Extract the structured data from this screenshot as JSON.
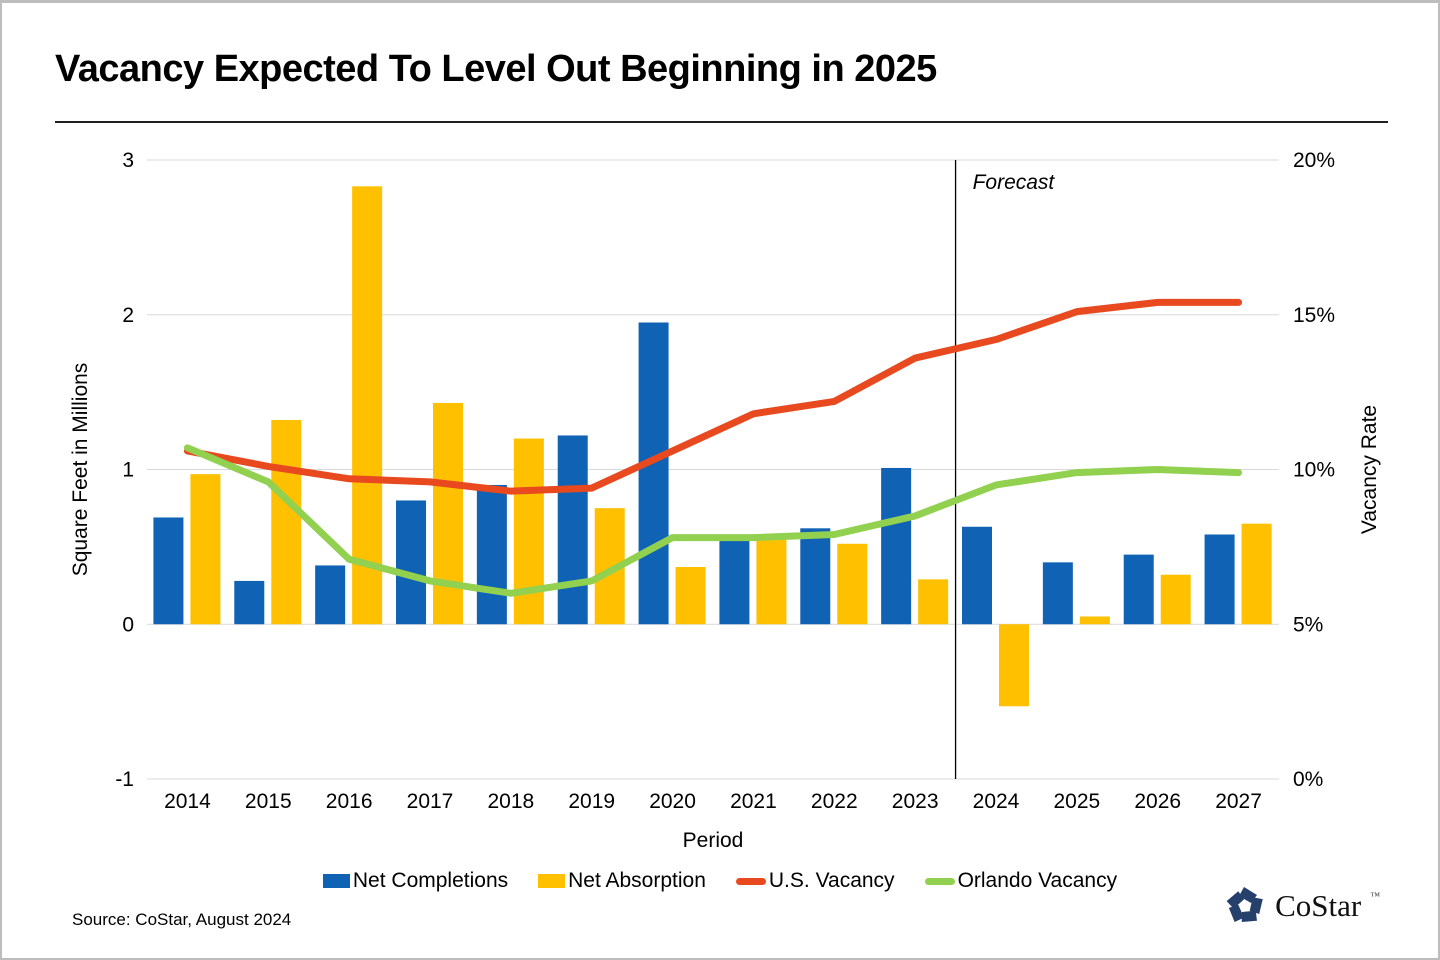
{
  "page": {
    "title": "Vacancy Expected To Level Out Beginning in 2025",
    "source": "Source: CoStar, August 2024",
    "logo_text": "CoStar",
    "logo_tm": "™"
  },
  "chart_data": {
    "type": "combo",
    "categories": [
      "2014",
      "2015",
      "2016",
      "2017",
      "2018",
      "2019",
      "2020",
      "2021",
      "2022",
      "2023",
      "2024",
      "2025",
      "2026",
      "2027"
    ],
    "series": [
      {
        "name": "Net Completions",
        "type": "bar",
        "axis": "left",
        "color": "#1062B5",
        "values": [
          0.69,
          0.28,
          0.38,
          0.8,
          0.9,
          1.22,
          1.95,
          0.54,
          0.62,
          1.01,
          0.63,
          0.4,
          0.45,
          0.58
        ]
      },
      {
        "name": "Net Absorption",
        "type": "bar",
        "axis": "left",
        "color": "#FFC000",
        "values": [
          0.97,
          1.32,
          2.83,
          1.43,
          1.2,
          0.75,
          0.37,
          0.55,
          0.52,
          0.29,
          -0.53,
          0.05,
          0.32,
          0.65
        ]
      },
      {
        "name": "U.S. Vacancy",
        "type": "line",
        "axis": "right",
        "color": "#E8491F",
        "values": [
          10.6,
          10.1,
          9.7,
          9.6,
          9.3,
          9.4,
          10.6,
          11.8,
          12.2,
          13.6,
          14.2,
          15.1,
          15.4,
          15.4
        ]
      },
      {
        "name": "Orlando Vacancy",
        "type": "line",
        "axis": "right",
        "color": "#92D050",
        "values": [
          10.7,
          9.6,
          7.1,
          6.4,
          6.0,
          6.4,
          7.8,
          7.8,
          7.9,
          8.5,
          9.5,
          9.9,
          10.0,
          9.9
        ]
      }
    ],
    "left_axis": {
      "title": "Square Feet in Millions",
      "min": -1,
      "max": 3,
      "ticks": [
        3,
        2,
        1,
        0,
        -1
      ]
    },
    "right_axis": {
      "title": "Vacancy Rate",
      "min": 0,
      "max": 20,
      "ticks": [
        20,
        15,
        10,
        5,
        0
      ],
      "suffix": "%"
    },
    "x_axis": {
      "title": "Period"
    },
    "forecast": {
      "label": "Forecast",
      "starts_after": "2023"
    },
    "grid": true,
    "legend_position": "bottom",
    "gridline_color": "#D9D9D9",
    "forecast_line_color": "#000000",
    "text_color": "#000000"
  }
}
